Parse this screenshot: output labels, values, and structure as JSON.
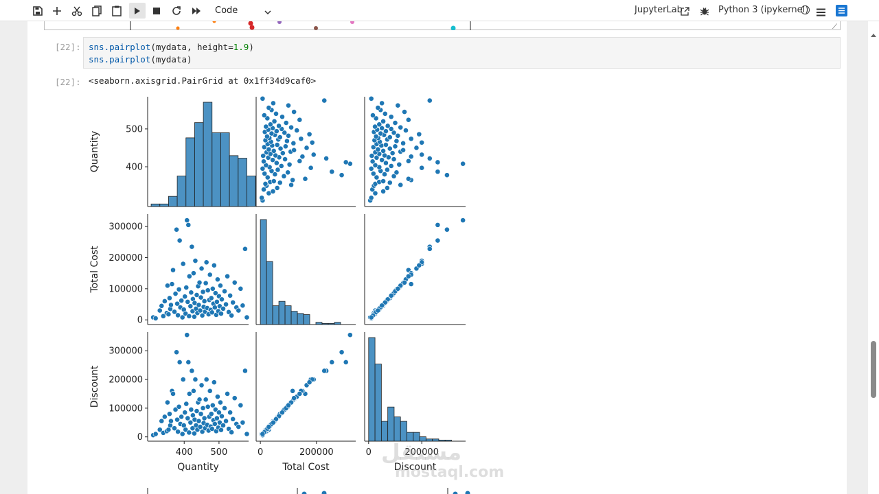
{
  "toolbar": {
    "cell_type": "Code",
    "jupyterlab_label": "JupyterLab",
    "kernel_label": "Python 3 (ipykernel)",
    "icons": [
      "save-icon",
      "add-cell-icon",
      "cut-icon",
      "copy-icon",
      "paste-icon",
      "run-icon",
      "stop-icon",
      "restart-icon",
      "run-all-icon",
      "chevron-down-icon",
      "external-link-icon",
      "bug-icon",
      "kernel-status-icon",
      "menu-icon",
      "toc-icon"
    ]
  },
  "cell": {
    "prompt_in": "[22]:",
    "prompt_out": "[22]:",
    "code_line1": {
      "fn": "sns.pairplot",
      "pre_args": "(mydata, height=",
      "num": "1.9",
      "post": ")"
    },
    "code_line2": {
      "fn": "sns.pairplot",
      "args": "(mydata)"
    },
    "output_text": "<seaborn.axisgrid.PairGrid at 0x1ff34d9caf0>"
  },
  "chart_data": {
    "type": "scatter",
    "subtype": "pairplot",
    "variables": [
      "Quantity",
      "Total Cost",
      "Discount"
    ],
    "color": "#1f77b4",
    "axes": {
      "Quantity": {
        "range": [
          295,
          585
        ],
        "ticks": [
          400,
          500
        ],
        "tick_labels": [
          "400",
          "500"
        ]
      },
      "Total Cost": {
        "range": [
          -15000,
          340000
        ],
        "ticks": [
          0,
          100000,
          200000,
          300000
        ],
        "tick_labels": [
          "0",
          "100000",
          "200000",
          "300000"
        ]
      },
      "Discount": {
        "range": [
          -15000,
          365000
        ],
        "ticks": [
          0,
          100000,
          200000,
          300000
        ],
        "tick_labels": [
          "0",
          "100000",
          "200000",
          "300000"
        ]
      }
    },
    "x_tick_labels": {
      "Quantity": [
        "400",
        "500"
      ],
      "Total Cost": [
        "0",
        "200000"
      ],
      "Discount": [
        "0",
        "200000"
      ]
    },
    "histograms": {
      "Quantity": {
        "bin_start": 305,
        "bin_width": 25,
        "heights": [
          1,
          1,
          4,
          12,
          27,
          33,
          41,
          29,
          29,
          20,
          19,
          12
        ]
      },
      "Total Cost": {
        "bin_start": 0,
        "bin_width": 22000,
        "heights": [
          95,
          57,
          17,
          21,
          17,
          12,
          10,
          9,
          0,
          2,
          1,
          1,
          2
        ]
      },
      "Discount": {
        "bin_start": 0,
        "bin_width": 24000,
        "heights": [
          94,
          70,
          18,
          31,
          22,
          18,
          8,
          8,
          4,
          2,
          2,
          1,
          1
        ]
      }
    },
    "points": {
      "Quantity": [
        311,
        318,
        330,
        335,
        340,
        344,
        350,
        352,
        355,
        358,
        360,
        362,
        365,
        368,
        372,
        375,
        378,
        380,
        382,
        385,
        387,
        389,
        392,
        395,
        397,
        399,
        402,
        404,
        406,
        408,
        410,
        412,
        414,
        415,
        418,
        420,
        422,
        424,
        425,
        427,
        429,
        430,
        432,
        434,
        436,
        438,
        440,
        442,
        444,
        446,
        448,
        450,
        452,
        454,
        456,
        458,
        460,
        462,
        464,
        466,
        468,
        470,
        472,
        474,
        476,
        478,
        480,
        482,
        484,
        486,
        488,
        490,
        492,
        494,
        496,
        498,
        500,
        502,
        504,
        506,
        508,
        512,
        516,
        520,
        524,
        528,
        532,
        536,
        540,
        545,
        550,
        556,
        562,
        568,
        575,
        580
      ],
      "Total Cost": [
        8000,
        5000,
        30000,
        45000,
        12000,
        60000,
        22000,
        110000,
        18000,
        70000,
        35000,
        48000,
        115000,
        160000,
        26000,
        84000,
        290000,
        52000,
        15000,
        98000,
        255000,
        40000,
        62000,
        8000,
        180000,
        33000,
        75000,
        20000,
        104000,
        320000,
        58000,
        305000,
        12000,
        140000,
        44000,
        88000,
        235000,
        28000,
        67000,
        150000,
        10000,
        54000,
        190000,
        36000,
        80000,
        22000,
        108000,
        48000,
        120000,
        30000,
        72000,
        165000,
        14000,
        90000,
        42000,
        60000,
        26000,
        118000,
        185000,
        38000,
        95000,
        18000,
        64000,
        145000,
        32000,
        70000,
        24000,
        100000,
        52000,
        175000,
        40000,
        86000,
        16000,
        58000,
        130000,
        28000,
        76000,
        44000,
        110000,
        20000,
        66000,
        36000,
        92000,
        50000,
        140000,
        25000,
        78000,
        14000,
        56000,
        120000,
        40000,
        30000,
        100000,
        46000,
        228000,
        8000
      ],
      "Discount": [
        6000,
        10000,
        25000,
        55000,
        14000,
        70000,
        20000,
        120000,
        25000,
        80000,
        40000,
        55000,
        160000,
        150000,
        30000,
        95000,
        295000,
        60000,
        18000,
        105000,
        260000,
        45000,
        70000,
        10000,
        200000,
        40000,
        85000,
        25000,
        115000,
        355000,
        65000,
        260000,
        15000,
        150000,
        50000,
        95000,
        230000,
        30000,
        75000,
        160000,
        12000,
        60000,
        200000,
        40000,
        90000,
        25000,
        120000,
        55000,
        130000,
        35000,
        80000,
        180000,
        18000,
        100000,
        48000,
        65000,
        30000,
        130000,
        200000,
        42000,
        105000,
        22000,
        70000,
        160000,
        36000,
        80000,
        28000,
        110000,
        58000,
        190000,
        45000,
        95000,
        20000,
        65000,
        140000,
        32000,
        85000,
        50000,
        120000,
        24000,
        72000,
        40000,
        100000,
        55000,
        150000,
        28000,
        85000,
        16000,
        62000,
        135000,
        45000,
        35000,
        110000,
        50000,
        230000,
        10000
      ]
    }
  }
}
